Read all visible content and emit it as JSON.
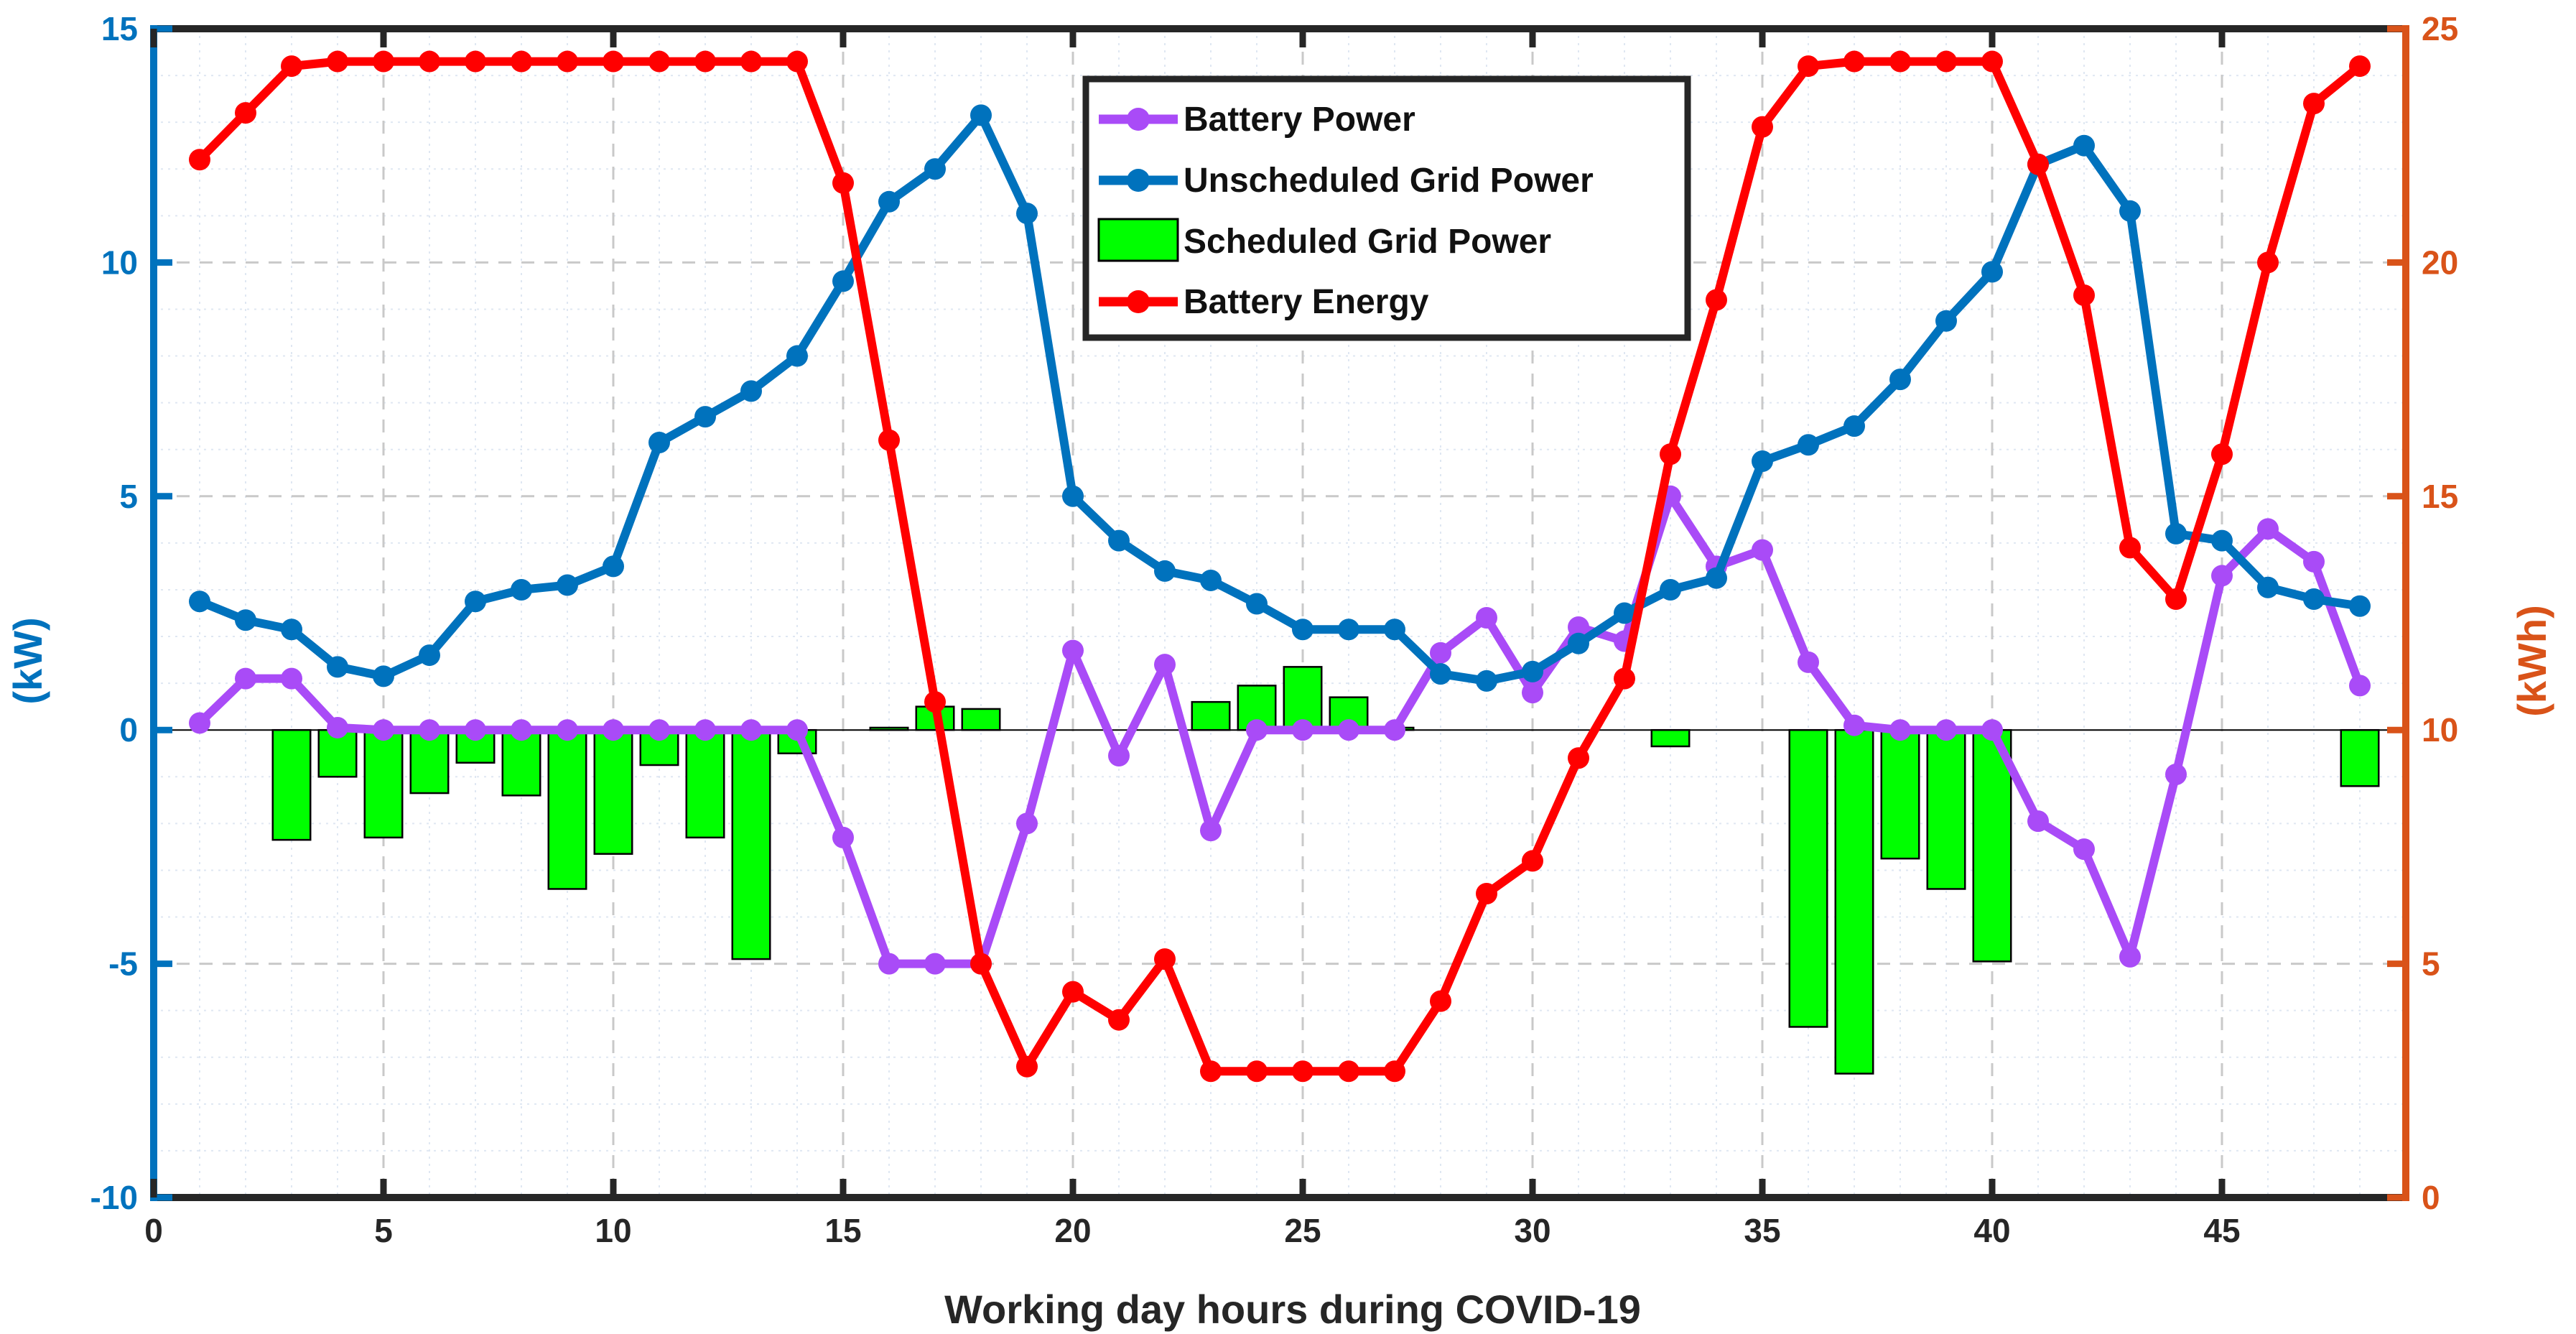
{
  "chart_data": {
    "type": "combo",
    "xlabel": "Working day hours during COVID-19",
    "ylabel_left": "(kW)",
    "ylabel_right": "(kWh)",
    "xlim": [
      0,
      49
    ],
    "ylim_left": [
      -10,
      15
    ],
    "ylim_right": [
      0,
      25
    ],
    "xticks": [
      0,
      5,
      10,
      15,
      20,
      25,
      30,
      35,
      40,
      45
    ],
    "yticks_left": [
      -10,
      -5,
      0,
      5,
      10,
      15
    ],
    "yticks_right": [
      0,
      5,
      10,
      15,
      20,
      25
    ],
    "grid": true,
    "legend_position": "top-center",
    "x": [
      1,
      2,
      3,
      4,
      5,
      6,
      7,
      8,
      9,
      10,
      11,
      12,
      13,
      14,
      15,
      16,
      17,
      18,
      19,
      20,
      21,
      22,
      23,
      24,
      25,
      26,
      27,
      28,
      29,
      30,
      31,
      32,
      33,
      34,
      35,
      36,
      37,
      38,
      39,
      40,
      41,
      42,
      43,
      44,
      45,
      46,
      47,
      48
    ],
    "series": [
      {
        "name": "Battery Power",
        "type": "line",
        "axis": "left",
        "color": "#A94BF7",
        "values": [
          0.15,
          1.1,
          1.1,
          0.05,
          0,
          0,
          0,
          0,
          0,
          0,
          0,
          0,
          0,
          0,
          -2.3,
          -5,
          -5,
          -5,
          -2,
          1.7,
          -0.55,
          1.4,
          -2.15,
          0,
          0,
          0,
          0,
          1.65,
          2.4,
          0.8,
          2.2,
          1.9,
          5,
          3.5,
          3.85,
          1.45,
          0.1,
          0,
          0,
          0,
          -1.95,
          -2.55,
          -4.85,
          -0.95,
          3.3,
          4.3,
          3.6,
          0.95
        ]
      },
      {
        "name": "Unscheduled Grid Power",
        "type": "line",
        "axis": "left",
        "color": "#0072BD",
        "values": [
          2.75,
          2.35,
          2.15,
          1.35,
          1.15,
          1.6,
          2.75,
          3,
          3.1,
          3.5,
          6.15,
          6.7,
          7.25,
          8,
          9.6,
          11.3,
          12,
          13.15,
          11.05,
          5,
          4.05,
          3.4,
          3.2,
          2.7,
          2.15,
          2.15,
          2.15,
          1.2,
          1.05,
          1.25,
          1.85,
          2.5,
          3,
          3.25,
          5.75,
          6.1,
          6.5,
          7.5,
          8.75,
          9.8,
          12.1,
          12.5,
          11.1,
          4.2,
          4.05,
          3.05,
          2.8,
          2.65
        ]
      },
      {
        "name": "Scheduled Grid Power",
        "type": "bar",
        "axis": "left",
        "color": "#00FF00",
        "values": [
          0,
          0,
          -2.35,
          -1,
          -2.3,
          -1.35,
          -0.7,
          -1.4,
          -3.4,
          -2.65,
          -0.75,
          -2.3,
          -4.9,
          -0.5,
          0,
          0.05,
          0.5,
          0.45,
          0,
          0,
          0,
          0,
          0.6,
          0.95,
          1.35,
          0.7,
          0.05,
          0,
          0,
          0,
          0,
          0,
          -0.35,
          0,
          0,
          -6.35,
          -7.35,
          -2.75,
          -3.4,
          -4.95,
          0,
          0,
          0,
          0,
          0,
          0,
          0,
          -1.2
        ]
      },
      {
        "name": "Battery Energy",
        "type": "line",
        "axis": "right",
        "color": "#FF0000",
        "values": [
          22.2,
          23.2,
          24.2,
          24.3,
          24.3,
          24.3,
          24.3,
          24.3,
          24.3,
          24.3,
          24.3,
          24.3,
          24.3,
          24.3,
          21.7,
          16.2,
          10.6,
          5,
          2.8,
          4.4,
          3.8,
          5.1,
          2.7,
          2.7,
          2.7,
          2.7,
          2.7,
          4.2,
          6.5,
          7.2,
          9.4,
          11.1,
          15.9,
          19.2,
          22.9,
          24.2,
          24.3,
          24.3,
          24.3,
          24.3,
          22.1,
          19.3,
          13.9,
          12.8,
          15.9,
          20,
          23.4,
          24.2
        ]
      }
    ]
  }
}
